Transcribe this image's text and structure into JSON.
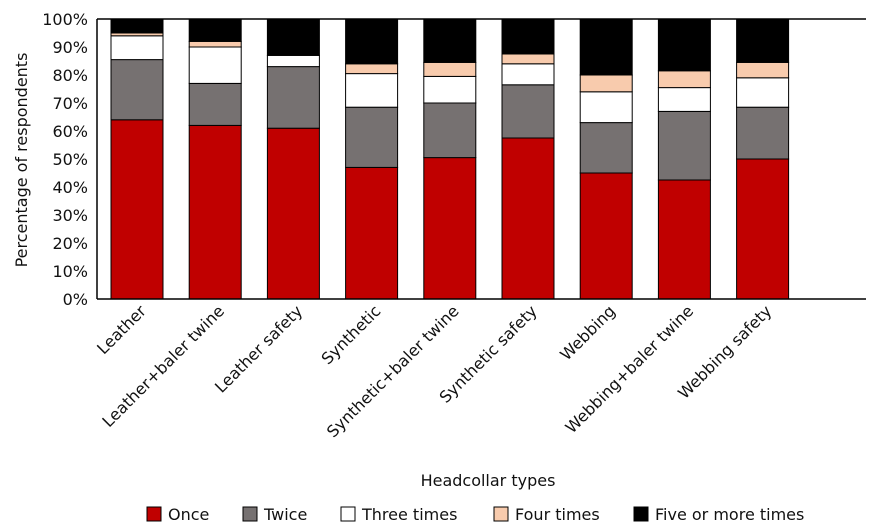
{
  "chart_data": {
    "type": "bar",
    "stacked": true,
    "title": "",
    "xlabel": "Headcollar types",
    "ylabel": "Percentage of respondents",
    "ylim": [
      0,
      100
    ],
    "y_ticks": [
      "0%",
      "10%",
      "20%",
      "30%",
      "40%",
      "50%",
      "60%",
      "70%",
      "80%",
      "90%",
      "100%"
    ],
    "categories": [
      "Leather",
      "Leather+baler twine",
      "Leather safety",
      "Synthetic",
      "Synthetic+baler twine",
      "Synthetic safety",
      "Webbing",
      "Webbing+baler twine",
      "Webbing safety"
    ],
    "series": [
      {
        "name": "Once",
        "color": "#c00000",
        "values": [
          64,
          62,
          61,
          47,
          50.5,
          57.5,
          45,
          42.5,
          50
        ]
      },
      {
        "name": "Twice",
        "color": "#767171",
        "values": [
          21.5,
          15,
          22,
          21.5,
          19.5,
          19,
          18,
          24.5,
          18.5
        ]
      },
      {
        "name": "Three times",
        "color": "#ffffff",
        "values": [
          8.5,
          13,
          4,
          12,
          9.5,
          7.5,
          11,
          8.5,
          10.5
        ]
      },
      {
        "name": "Four times",
        "color": "#f8cbad",
        "values": [
          1,
          2,
          0,
          3.5,
          5,
          3.5,
          6,
          6,
          5.5
        ]
      },
      {
        "name": "Five or more times",
        "color": "#000000",
        "values": [
          5,
          8,
          13,
          16,
          15.5,
          12.5,
          20,
          18.5,
          15.5
        ]
      }
    ],
    "legend_position": "bottom",
    "grid": false
  }
}
